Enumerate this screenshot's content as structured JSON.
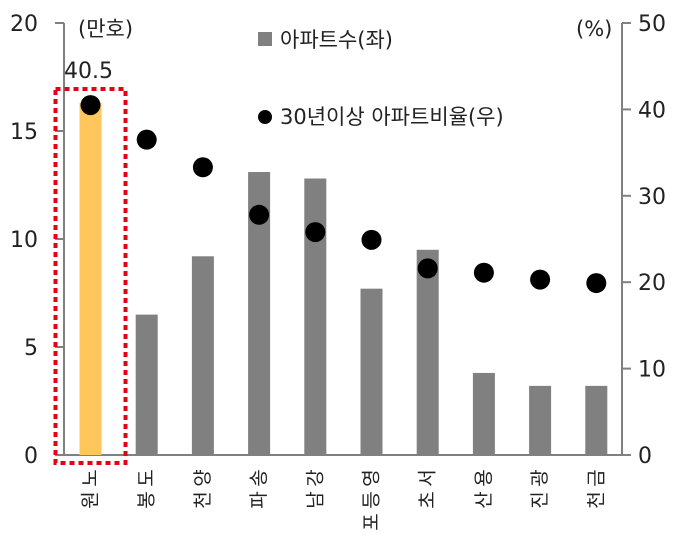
{
  "chart_data": {
    "type": "bar",
    "categories": [
      "노원",
      "도봉",
      "양천",
      "송파",
      "강남",
      "영등포",
      "서초",
      "용산",
      "광진",
      "금천"
    ],
    "series": [
      {
        "name": "아파트수(좌)",
        "kind": "bar",
        "axis": "left",
        "values": [
          16.3,
          6.5,
          9.2,
          13.1,
          12.8,
          7.7,
          9.5,
          3.8,
          3.2,
          3.2
        ]
      },
      {
        "name": "30년이상 아파트비율(우)",
        "kind": "scatter",
        "axis": "right",
        "values": [
          40.5,
          36.5,
          33.3,
          27.8,
          25.8,
          24.9,
          21.6,
          21.1,
          20.3,
          19.9
        ]
      }
    ],
    "left_axis": {
      "unit_label": "(만호)",
      "range": [
        0,
        20
      ],
      "ticks": [
        "0",
        "5",
        "10",
        "15",
        "20"
      ]
    },
    "right_axis": {
      "unit_label": "(%)",
      "range": [
        0,
        50
      ],
      "ticks": [
        "0",
        "10",
        "20",
        "30",
        "40",
        "50"
      ]
    },
    "annotation": {
      "text": "40.5",
      "category": "노원"
    },
    "highlight_category": "노원",
    "legend_position": "top-right",
    "grid": false,
    "colors": {
      "bar": "#808080",
      "bar_highlight": "#FFC65C",
      "dot": "#000000",
      "highlight_box": "#E60012",
      "axis": "#808080"
    }
  }
}
